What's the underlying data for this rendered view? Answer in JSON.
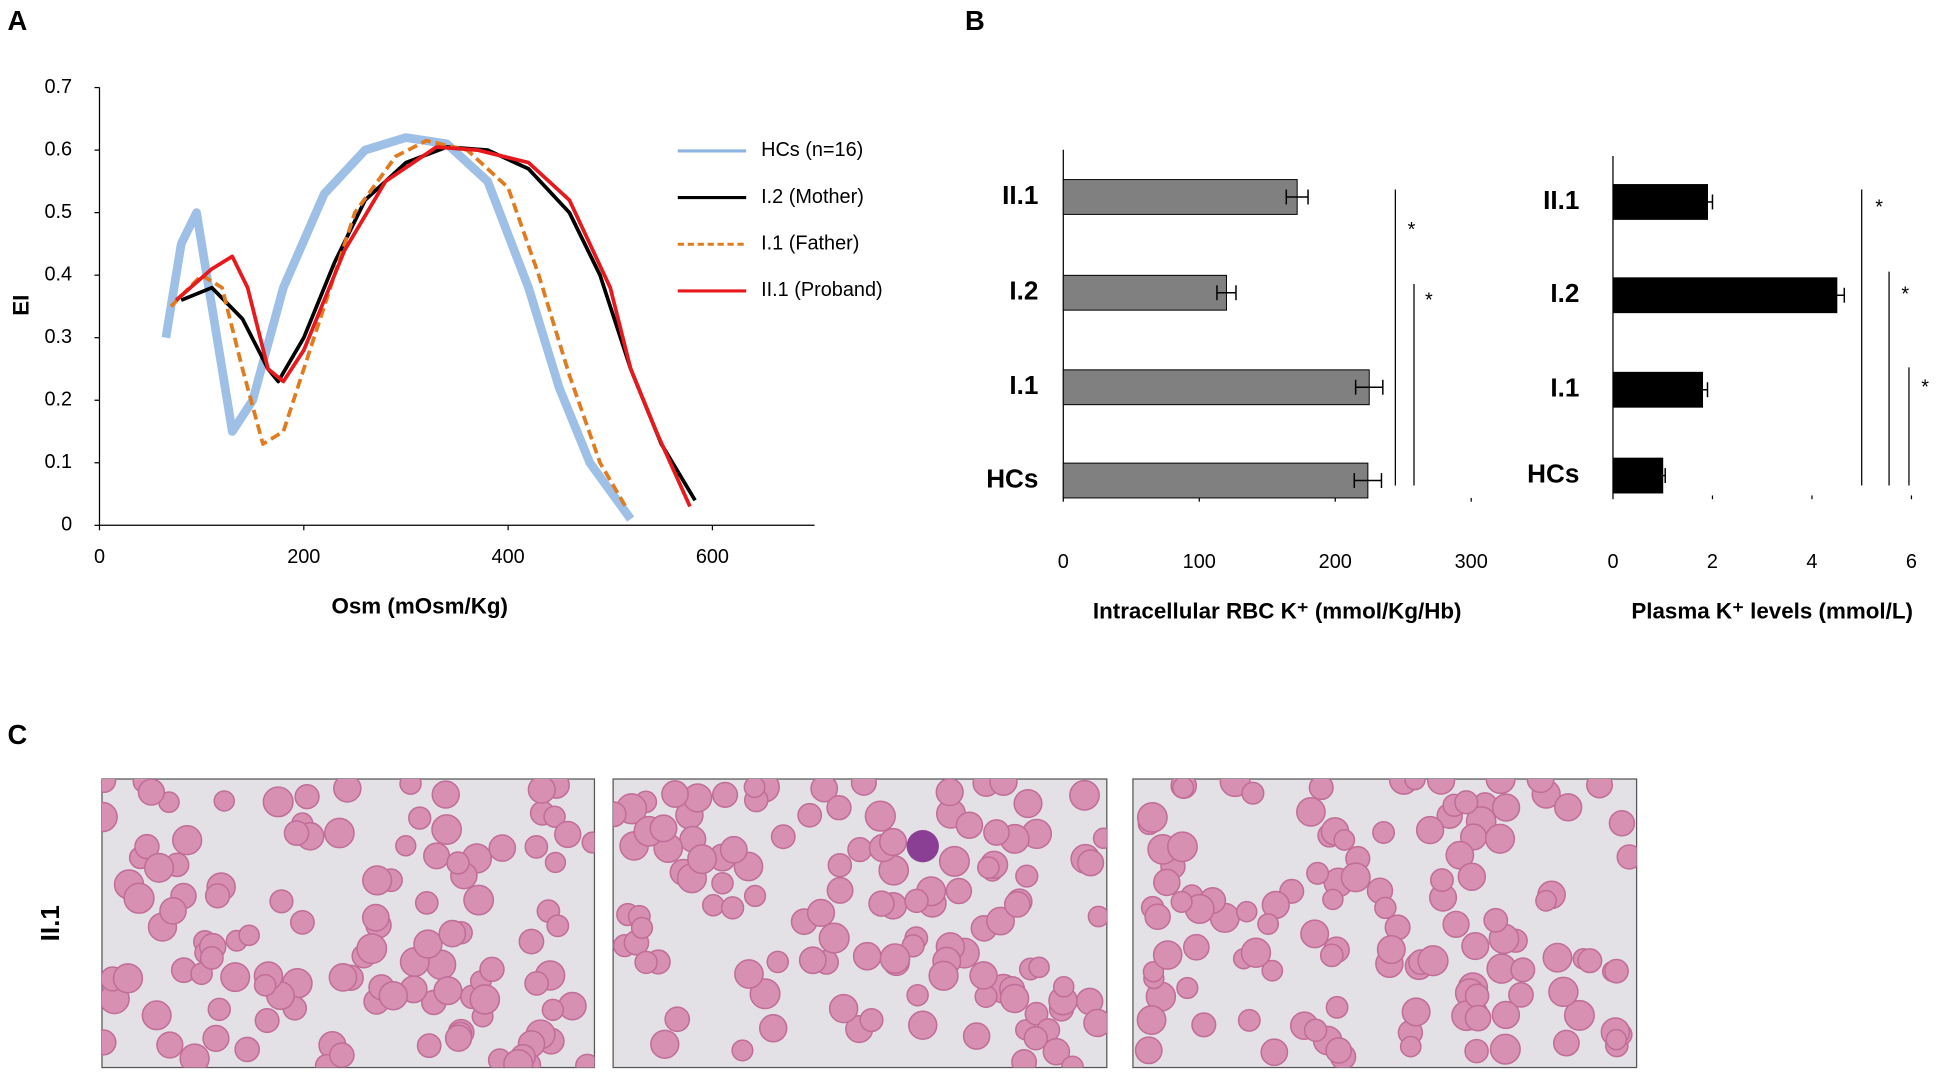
{
  "panel_labels": [
    "A",
    "B",
    "C"
  ],
  "row_label": "II.1",
  "chart_data": [
    {
      "type": "line",
      "xlabel": "Osm (mOsm/Kg)",
      "ylabel": "EI",
      "xlim": [
        0,
        700
      ],
      "xticks": [
        0,
        200,
        400,
        600
      ],
      "ylim": [
        0,
        0.7
      ],
      "yticks": [
        0,
        0.1,
        0.2,
        0.3,
        0.4,
        0.5,
        0.6,
        0.7
      ],
      "series": [
        {
          "name": "HCs (n=16)",
          "color": "#8db4e2",
          "x": [
            65,
            80,
            95,
            115,
            130,
            150,
            180,
            220,
            260,
            300,
            340,
            380,
            420,
            450,
            480,
            520
          ],
          "values": [
            0.3,
            0.45,
            0.5,
            0.3,
            0.15,
            0.2,
            0.38,
            0.53,
            0.6,
            0.62,
            0.61,
            0.55,
            0.38,
            0.22,
            0.1,
            0.01
          ]
        },
        {
          "name": "I.2 (Mother)",
          "color": "#000000",
          "x": [
            80,
            110,
            140,
            165,
            175,
            200,
            230,
            260,
            300,
            340,
            380,
            420,
            460,
            490,
            520,
            550,
            583
          ],
          "values": [
            0.36,
            0.38,
            0.33,
            0.25,
            0.23,
            0.3,
            0.42,
            0.52,
            0.58,
            0.605,
            0.6,
            0.57,
            0.5,
            0.4,
            0.25,
            0.13,
            0.04
          ]
        },
        {
          "name": "I.1 (Father)",
          "color": "#e07b20",
          "dash": true,
          "x": [
            70,
            100,
            120,
            140,
            160,
            180,
            210,
            250,
            290,
            320,
            360,
            400,
            430,
            460,
            490,
            515
          ],
          "values": [
            0.35,
            0.4,
            0.38,
            0.25,
            0.13,
            0.15,
            0.3,
            0.5,
            0.59,
            0.615,
            0.6,
            0.54,
            0.4,
            0.24,
            0.1,
            0.03
          ]
        },
        {
          "name": "II.1 (Proband)",
          "color": "#e8191c",
          "x": [
            75,
            110,
            130,
            145,
            165,
            180,
            200,
            240,
            280,
            330,
            370,
            420,
            460,
            500,
            520,
            545,
            578
          ],
          "values": [
            0.36,
            0.41,
            0.43,
            0.38,
            0.25,
            0.23,
            0.28,
            0.44,
            0.55,
            0.605,
            0.6,
            0.58,
            0.52,
            0.38,
            0.25,
            0.15,
            0.03
          ]
        }
      ]
    },
    {
      "type": "hbar",
      "color": "#808080",
      "xlabel": "Intracellular RBC K⁺ (mmol/Kg/Hb)",
      "categories": [
        "II.1",
        "I.2",
        "I.1",
        "HCs"
      ],
      "values": [
        172,
        120,
        225,
        224
      ],
      "errors": [
        8,
        7,
        10,
        10
      ],
      "xlim": [
        0,
        300
      ],
      "xticks": [
        0,
        100,
        200,
        300
      ],
      "annotations": [
        "*",
        "*"
      ]
    },
    {
      "type": "hbar",
      "color": "#000000",
      "xlabel": "Plasma K⁺ levels (mmol/L)",
      "categories": [
        "II.1",
        "I.2",
        "I.1",
        "HCs"
      ],
      "values": [
        1.9,
        4.5,
        1.8,
        1.0
      ],
      "errors": [
        0.1,
        0.15,
        0.1,
        0.05
      ],
      "xlim": [
        0,
        6
      ],
      "xticks": [
        0,
        2,
        4,
        6
      ],
      "annotations": [
        "*",
        "*",
        "*"
      ]
    }
  ]
}
